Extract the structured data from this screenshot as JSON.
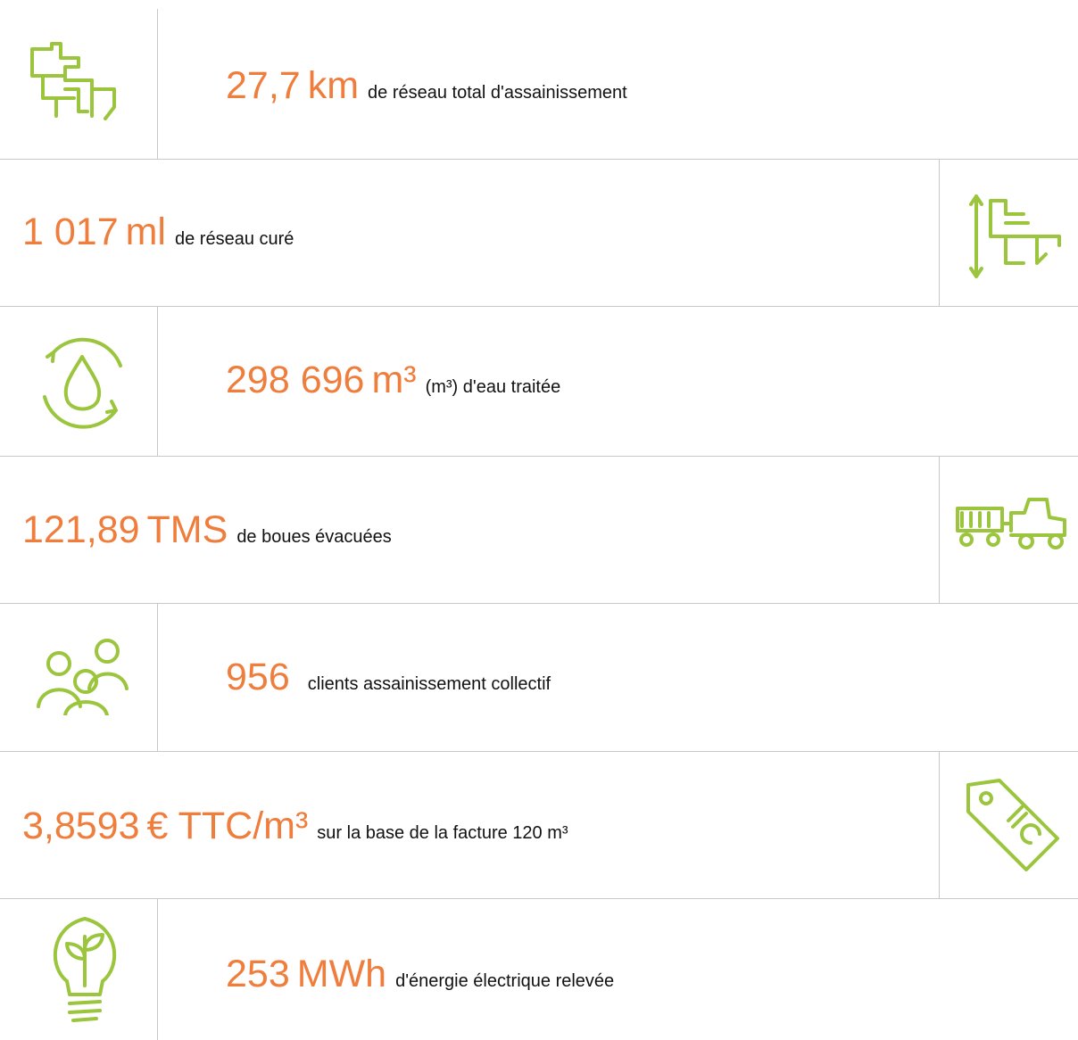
{
  "items": [
    {
      "value": "27,7",
      "unit": "km",
      "text": "de réseau total d'assainissement"
    },
    {
      "value": "1 017",
      "unit": "ml",
      "text": "de réseau curé"
    },
    {
      "value": "298 696",
      "unit": "m³",
      "text": "(m³) d'eau traitée"
    },
    {
      "value": "121,89",
      "unit": "TMS",
      "text": "de boues évacuées"
    },
    {
      "value": "956",
      "text": "clients assainissement collectif"
    },
    {
      "value": "3,8593",
      "unit": "€ TTC/m³",
      "text": "sur la base de la facture 120 m³"
    },
    {
      "value": "253",
      "unit": "MWh",
      "text": "d'énergie électrique relevée"
    }
  ]
}
